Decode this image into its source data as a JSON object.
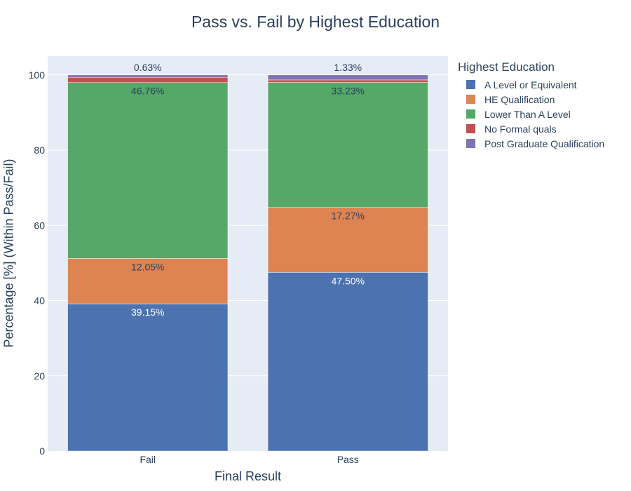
{
  "chart_data": {
    "type": "bar",
    "barmode": "stack",
    "title": "Pass vs. Fail by Highest Education",
    "xlabel": "Final Result",
    "ylabel": "Percentage [%] (Within Pass/Fail)",
    "categories": [
      "Fail",
      "Pass"
    ],
    "ylim": [
      0,
      105
    ],
    "yticks": [
      0,
      20,
      40,
      60,
      80,
      100
    ],
    "grid": true,
    "legend_position": "right",
    "legend_title": "Highest Education",
    "series": [
      {
        "name": "A Level or Equivalent",
        "color": "#4c72b0",
        "values": [
          39.15,
          47.5
        ],
        "labels": [
          "39.15%",
          "47.50%"
        ],
        "label_color": "#ffffff"
      },
      {
        "name": "HE Qualification",
        "color": "#dd8452",
        "values": [
          12.05,
          17.27
        ],
        "labels": [
          "12.05%",
          "17.27%"
        ],
        "label_color": "#2a3f5f"
      },
      {
        "name": "Lower Than A Level",
        "color": "#55a868",
        "values": [
          46.76,
          33.23
        ],
        "labels": [
          "46.76%",
          "33.23%"
        ],
        "label_color": "#2a3f5f"
      },
      {
        "name": "No Formal quals",
        "color": "#c44e52",
        "values": [
          1.41,
          0.67
        ],
        "labels": [
          "",
          ""
        ],
        "label_color": "#2a3f5f"
      },
      {
        "name": "Post Graduate Qualification",
        "color": "#8172b3",
        "values": [
          0.63,
          1.33
        ],
        "labels": [
          "0.63%",
          "1.33%"
        ],
        "label_color": "#2a3f5f",
        "label_outside": true
      }
    ]
  },
  "colors": {
    "plot_background": "#e5ecf6",
    "gridline": "#ffffff",
    "text": "#2a3f5f"
  }
}
